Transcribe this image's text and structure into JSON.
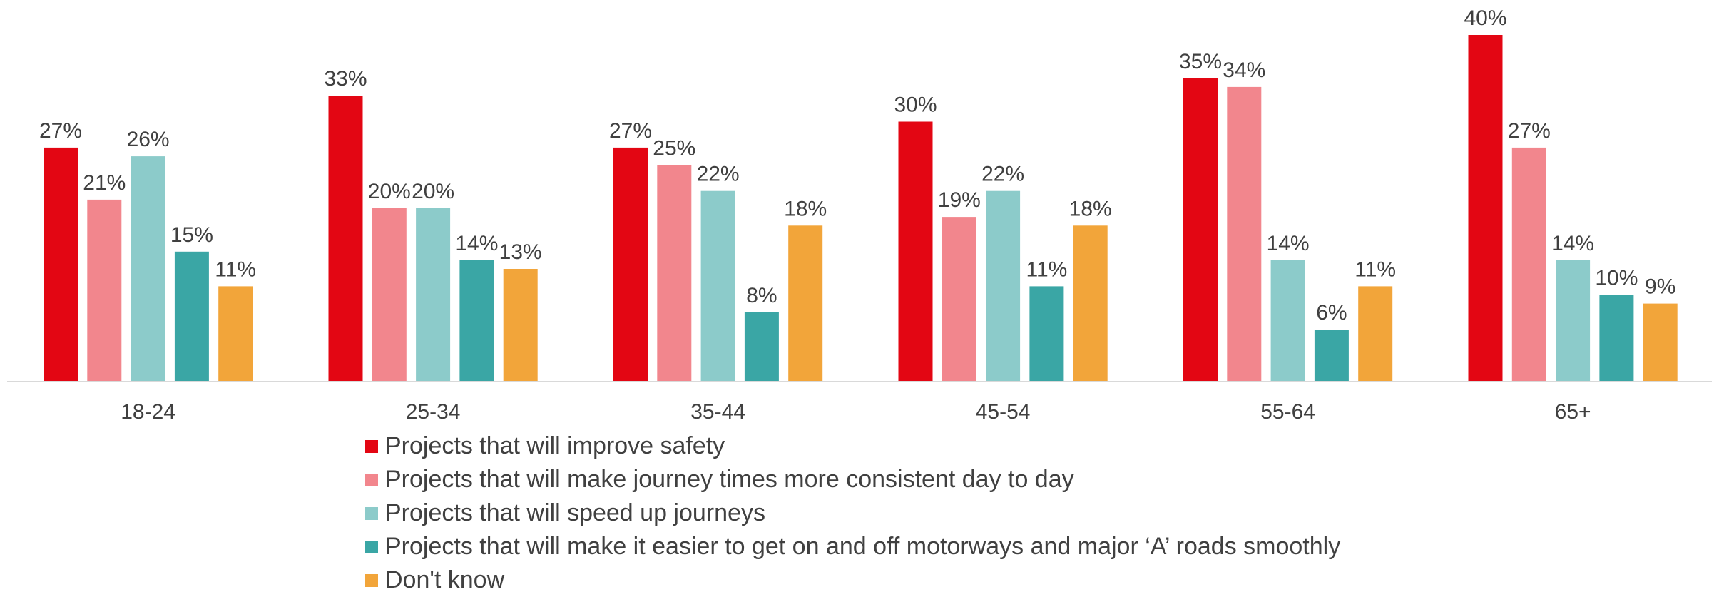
{
  "chart_data": {
    "type": "bar",
    "categories": [
      "18-24",
      "25-34",
      "35-44",
      "45-54",
      "55-64",
      "65+"
    ],
    "series": [
      {
        "name": "Projects that will improve safety",
        "color": "#E30613",
        "values": [
          27,
          33,
          27,
          30,
          35,
          40
        ]
      },
      {
        "name": "Projects that will make journey times more consistent day to day",
        "color": "#F2868D",
        "values": [
          21,
          20,
          25,
          19,
          34,
          27
        ]
      },
      {
        "name": "Projects that will speed up journeys",
        "color": "#8CCBCA",
        "values": [
          26,
          20,
          22,
          22,
          14,
          14
        ]
      },
      {
        "name": "Projects that will make it easier to get on and off motorways and major ‘A’ roads smoothly",
        "color": "#3AA6A5",
        "values": [
          15,
          14,
          8,
          11,
          6,
          10
        ]
      },
      {
        "name": "Don't know",
        "color": "#F2A53A",
        "values": [
          11,
          13,
          18,
          18,
          11,
          9
        ]
      }
    ],
    "value_suffix": "%",
    "ylim": [
      0,
      44
    ],
    "grid": false,
    "legend_position": "bottom"
  }
}
